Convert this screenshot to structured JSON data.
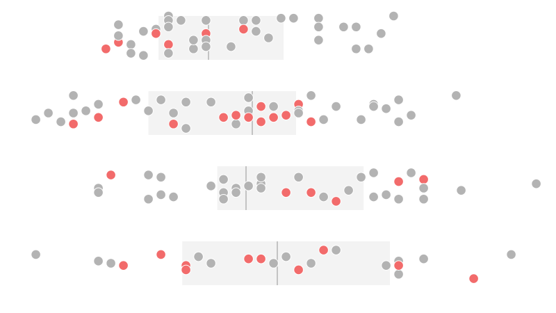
{
  "chart_data": {
    "type": "scatter",
    "subtype": "beeswarm-with-boxplot",
    "xlim": [
      0,
      40
    ],
    "grid": false,
    "legend": "none",
    "colors": {
      "default": "#b3b3b3",
      "highlight": "#f26b6b",
      "box": "#f3f3f3",
      "median": "#b3b3b3"
    },
    "rows": [
      {
        "box": {
          "q1": 11,
          "median": 15,
          "q3": 21
        },
        "points": [
          {
            "x": 6.8,
            "y": 0.5,
            "highlight": true
          },
          {
            "x": 7.8,
            "y": 1.6,
            "highlight": false
          },
          {
            "x": 7.8,
            "y": 0.8,
            "highlight": true
          },
          {
            "x": 7.8,
            "y": 1.1,
            "highlight": false
          },
          {
            "x": 8.8,
            "y": 0.7,
            "highlight": false
          },
          {
            "x": 8.8,
            "y": 0.3,
            "highlight": false
          },
          {
            "x": 9.8,
            "y": 1.3,
            "highlight": false
          },
          {
            "x": 9.8,
            "y": 0.2,
            "highlight": false
          },
          {
            "x": 10.8,
            "y": 1.4,
            "highlight": false
          },
          {
            "x": 10.8,
            "y": 1.2,
            "highlight": true
          },
          {
            "x": 11.8,
            "y": 2.0,
            "highlight": false
          },
          {
            "x": 11.8,
            "y": 1.8,
            "highlight": false
          },
          {
            "x": 11.8,
            "y": 1.5,
            "highlight": false
          },
          {
            "x": 11.8,
            "y": 0.7,
            "highlight": true
          },
          {
            "x": 11.8,
            "y": 0.3,
            "highlight": false
          },
          {
            "x": 12.8,
            "y": 1.8,
            "highlight": false
          },
          {
            "x": 13.8,
            "y": 0.5,
            "highlight": false
          },
          {
            "x": 13.8,
            "y": 0.9,
            "highlight": false
          },
          {
            "x": 14.8,
            "y": 1.8,
            "highlight": false
          },
          {
            "x": 14.8,
            "y": 1.2,
            "highlight": true
          },
          {
            "x": 14.8,
            "y": 0.9,
            "highlight": false
          },
          {
            "x": 14.8,
            "y": 0.6,
            "highlight": false
          },
          {
            "x": 16.8,
            "y": 0.6,
            "highlight": false
          },
          {
            "x": 17.8,
            "y": 1.8,
            "highlight": false
          },
          {
            "x": 17.8,
            "y": 1.4,
            "highlight": true
          },
          {
            "x": 18.8,
            "y": 1.8,
            "highlight": false
          },
          {
            "x": 18.8,
            "y": 1.3,
            "highlight": false
          },
          {
            "x": 19.8,
            "y": 1.0,
            "highlight": false
          },
          {
            "x": 20.8,
            "y": 1.9,
            "highlight": false
          },
          {
            "x": 21.8,
            "y": 1.9,
            "highlight": false
          },
          {
            "x": 23.8,
            "y": 1.9,
            "highlight": false
          },
          {
            "x": 23.8,
            "y": 1.5,
            "highlight": false
          },
          {
            "x": 23.8,
            "y": 0.9,
            "highlight": false
          },
          {
            "x": 25.8,
            "y": 1.5,
            "highlight": false
          },
          {
            "x": 26.8,
            "y": 1.5,
            "highlight": false
          },
          {
            "x": 26.8,
            "y": 0.5,
            "highlight": false
          },
          {
            "x": 27.8,
            "y": 0.5,
            "highlight": false
          },
          {
            "x": 28.8,
            "y": 1.2,
            "highlight": false
          },
          {
            "x": 29.8,
            "y": 2.0,
            "highlight": false
          }
        ]
      },
      {
        "box": {
          "q1": 10.2,
          "median": 18.5,
          "q3": 22
        },
        "points": [
          {
            "x": 1.2,
            "y": 0.7,
            "highlight": false
          },
          {
            "x": 2.2,
            "y": 1.0,
            "highlight": false
          },
          {
            "x": 3.2,
            "y": 0.6,
            "highlight": false
          },
          {
            "x": 4.2,
            "y": 1.8,
            "highlight": false
          },
          {
            "x": 4.2,
            "y": 1.0,
            "highlight": false
          },
          {
            "x": 4.2,
            "y": 0.5,
            "highlight": true
          },
          {
            "x": 5.2,
            "y": 1.1,
            "highlight": false
          },
          {
            "x": 6.2,
            "y": 1.4,
            "highlight": false
          },
          {
            "x": 6.2,
            "y": 0.8,
            "highlight": true
          },
          {
            "x": 8.2,
            "y": 1.5,
            "highlight": true
          },
          {
            "x": 9.2,
            "y": 1.6,
            "highlight": false
          },
          {
            "x": 10.2,
            "y": 1.1,
            "highlight": false
          },
          {
            "x": 11.2,
            "y": 1.6,
            "highlight": false
          },
          {
            "x": 12.2,
            "y": 1.0,
            "highlight": false
          },
          {
            "x": 12.2,
            "y": 0.5,
            "highlight": true
          },
          {
            "x": 13.2,
            "y": 1.5,
            "highlight": false
          },
          {
            "x": 13.2,
            "y": 0.3,
            "highlight": false
          },
          {
            "x": 15.2,
            "y": 1.5,
            "highlight": false
          },
          {
            "x": 16.2,
            "y": 0.8,
            "highlight": true
          },
          {
            "x": 17.2,
            "y": 0.5,
            "highlight": false
          },
          {
            "x": 17.2,
            "y": 0.9,
            "highlight": true
          },
          {
            "x": 18.2,
            "y": 1.7,
            "highlight": false
          },
          {
            "x": 18.2,
            "y": 1.1,
            "highlight": false
          },
          {
            "x": 18.2,
            "y": 0.8,
            "highlight": true
          },
          {
            "x": 19.2,
            "y": 1.3,
            "highlight": true
          },
          {
            "x": 19.2,
            "y": 0.6,
            "highlight": true
          },
          {
            "x": 20.2,
            "y": 1.3,
            "highlight": false
          },
          {
            "x": 20.2,
            "y": 0.8,
            "highlight": true
          },
          {
            "x": 21.2,
            "y": 0.9,
            "highlight": true
          },
          {
            "x": 22.2,
            "y": 1.4,
            "highlight": true
          },
          {
            "x": 22.2,
            "y": 1.1,
            "highlight": false
          },
          {
            "x": 22.2,
            "y": 1.0,
            "highlight": false
          },
          {
            "x": 23.2,
            "y": 1.8,
            "highlight": false
          },
          {
            "x": 23.2,
            "y": 0.6,
            "highlight": true
          },
          {
            "x": 24.2,
            "y": 0.7,
            "highlight": false
          },
          {
            "x": 25.2,
            "y": 1.3,
            "highlight": false
          },
          {
            "x": 27.2,
            "y": 0.7,
            "highlight": false
          },
          {
            "x": 28.2,
            "y": 1.4,
            "highlight": false
          },
          {
            "x": 28.2,
            "y": 1.3,
            "highlight": false
          },
          {
            "x": 29.2,
            "y": 1.2,
            "highlight": false
          },
          {
            "x": 30.2,
            "y": 1.6,
            "highlight": false
          },
          {
            "x": 30.2,
            "y": 0.6,
            "highlight": false
          },
          {
            "x": 31.2,
            "y": 0.9,
            "highlight": false
          },
          {
            "x": 34.8,
            "y": 1.8,
            "highlight": false
          }
        ]
      },
      {
        "box": {
          "q1": 15.7,
          "median": 18,
          "q3": 27.4
        },
        "points": [
          {
            "x": 6.2,
            "y": 1.0,
            "highlight": false
          },
          {
            "x": 6.2,
            "y": 0.8,
            "highlight": false
          },
          {
            "x": 7.2,
            "y": 1.6,
            "highlight": true
          },
          {
            "x": 10.2,
            "y": 1.6,
            "highlight": false
          },
          {
            "x": 10.2,
            "y": 0.5,
            "highlight": false
          },
          {
            "x": 11.2,
            "y": 1.5,
            "highlight": false
          },
          {
            "x": 11.2,
            "y": 0.7,
            "highlight": false
          },
          {
            "x": 12.2,
            "y": 0.6,
            "highlight": false
          },
          {
            "x": 15.2,
            "y": 1.1,
            "highlight": false
          },
          {
            "x": 16.2,
            "y": 1.4,
            "highlight": false
          },
          {
            "x": 16.2,
            "y": 0.8,
            "highlight": false
          },
          {
            "x": 16.2,
            "y": 0.5,
            "highlight": false
          },
          {
            "x": 17.2,
            "y": 1.0,
            "highlight": false
          },
          {
            "x": 17.2,
            "y": 0.8,
            "highlight": false
          },
          {
            "x": 18.2,
            "y": 1.1,
            "highlight": false
          },
          {
            "x": 19.2,
            "y": 1.2,
            "highlight": false
          },
          {
            "x": 19.2,
            "y": 1.0,
            "highlight": false
          },
          {
            "x": 19.2,
            "y": 1.5,
            "highlight": false
          },
          {
            "x": 21.2,
            "y": 0.8,
            "highlight": true
          },
          {
            "x": 22.2,
            "y": 1.5,
            "highlight": false
          },
          {
            "x": 23.2,
            "y": 0.8,
            "highlight": true
          },
          {
            "x": 24.2,
            "y": 0.6,
            "highlight": false
          },
          {
            "x": 25.2,
            "y": 0.4,
            "highlight": true
          },
          {
            "x": 26.2,
            "y": 0.9,
            "highlight": false
          },
          {
            "x": 27.2,
            "y": 1.5,
            "highlight": false
          },
          {
            "x": 28.2,
            "y": 1.7,
            "highlight": false
          },
          {
            "x": 28.2,
            "y": 0.6,
            "highlight": false
          },
          {
            "x": 29.2,
            "y": 0.7,
            "highlight": false
          },
          {
            "x": 30.2,
            "y": 1.3,
            "highlight": true
          },
          {
            "x": 30.2,
            "y": 0.5,
            "highlight": false
          },
          {
            "x": 31.2,
            "y": 1.7,
            "highlight": false
          },
          {
            "x": 32.2,
            "y": 1.4,
            "highlight": true
          },
          {
            "x": 32.2,
            "y": 1.0,
            "highlight": false
          },
          {
            "x": 32.2,
            "y": 0.5,
            "highlight": false
          },
          {
            "x": 35.2,
            "y": 0.9,
            "highlight": false
          },
          {
            "x": 41.2,
            "y": 1.2,
            "highlight": false
          }
        ]
      },
      {
        "box": {
          "q1": 12.9,
          "median": 20.5,
          "q3": 29.5
        },
        "points": [
          {
            "x": 1.2,
            "y": 1.4,
            "highlight": false
          },
          {
            "x": 6.2,
            "y": 1.1,
            "highlight": false
          },
          {
            "x": 7.2,
            "y": 1.0,
            "highlight": false
          },
          {
            "x": 8.2,
            "y": 0.9,
            "highlight": true
          },
          {
            "x": 11.2,
            "y": 1.4,
            "highlight": true
          },
          {
            "x": 13.2,
            "y": 0.9,
            "highlight": true
          },
          {
            "x": 13.2,
            "y": 0.7,
            "highlight": true
          },
          {
            "x": 14.2,
            "y": 1.3,
            "highlight": false
          },
          {
            "x": 15.2,
            "y": 1.0,
            "highlight": false
          },
          {
            "x": 18.2,
            "y": 1.2,
            "highlight": true
          },
          {
            "x": 19.2,
            "y": 1.2,
            "highlight": true
          },
          {
            "x": 20.2,
            "y": 1.0,
            "highlight": false
          },
          {
            "x": 21.2,
            "y": 1.3,
            "highlight": false
          },
          {
            "x": 22.2,
            "y": 0.7,
            "highlight": true
          },
          {
            "x": 23.2,
            "y": 1.0,
            "highlight": false
          },
          {
            "x": 24.2,
            "y": 1.6,
            "highlight": true
          },
          {
            "x": 25.2,
            "y": 1.6,
            "highlight": false
          },
          {
            "x": 29.2,
            "y": 0.9,
            "highlight": false
          },
          {
            "x": 30.2,
            "y": 1.1,
            "highlight": false
          },
          {
            "x": 30.2,
            "y": 0.5,
            "highlight": false
          },
          {
            "x": 30.2,
            "y": 0.9,
            "highlight": true
          },
          {
            "x": 32.2,
            "y": 1.2,
            "highlight": false
          },
          {
            "x": 36.2,
            "y": 0.3,
            "highlight": true
          },
          {
            "x": 39.2,
            "y": 1.4,
            "highlight": false
          }
        ]
      }
    ]
  }
}
